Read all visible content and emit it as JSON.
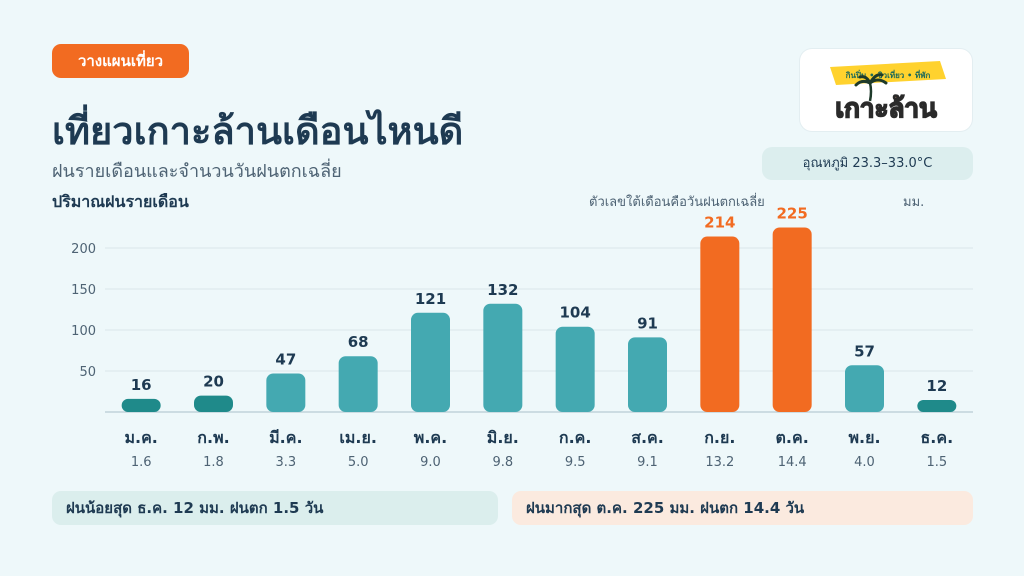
{
  "header": {
    "tag": "วางแผนเที่ยว",
    "title": "เที่ยวเกาะล้านเดือนไหนดี",
    "subtitle": "ฝนรายเดือนและจำนวนวันฝนตกเฉลี่ย"
  },
  "logo": {
    "tagline": "กินปิ่น • ชิวเที่ยว • ที่พัก",
    "name": "เกาะล้าน"
  },
  "temperature": "อุณหภูมิ 23.3–33.0°C",
  "chart_header": {
    "ylabel": "ปริมาณฝนรายเดือน",
    "note": "ตัวเลขใต้เดือนคือวันฝนตกเฉลี่ย",
    "unit": "มม."
  },
  "chart_data": {
    "type": "bar",
    "categories": [
      "ม.ค.",
      "ก.พ.",
      "มี.ค.",
      "เม.ย.",
      "พ.ค.",
      "มิ.ย.",
      "ก.ค.",
      "ส.ค.",
      "ก.ย.",
      "ต.ค.",
      "พ.ย.",
      "ธ.ค."
    ],
    "values": [
      16,
      20,
      47,
      68,
      121,
      132,
      104,
      91,
      214,
      225,
      57,
      12
    ],
    "rain_days": [
      "1.6",
      "1.8",
      "3.3",
      "5.0",
      "9.0",
      "9.8",
      "9.5",
      "9.1",
      "13.2",
      "14.4",
      "4.0",
      "1.5"
    ],
    "yticks": [
      50,
      100,
      150,
      200
    ],
    "ylim": [
      0,
      200
    ],
    "ylabel": "ปริมาณฝนรายเดือน",
    "grid": true,
    "colors": {
      "normal": "#44a9b1",
      "low": "#1f8a8a",
      "high": "#f26b21"
    },
    "bar_style": [
      "low",
      "low",
      "normal",
      "normal",
      "normal",
      "normal",
      "normal",
      "normal",
      "high",
      "high",
      "normal",
      "low"
    ]
  },
  "summary": {
    "min": "ฝนน้อยสุด ธ.ค. 12 มม. ฝนตก 1.5 วัน",
    "max": "ฝนมากสุด ต.ค. 225 มม. ฝนตก 14.4 วัน"
  }
}
